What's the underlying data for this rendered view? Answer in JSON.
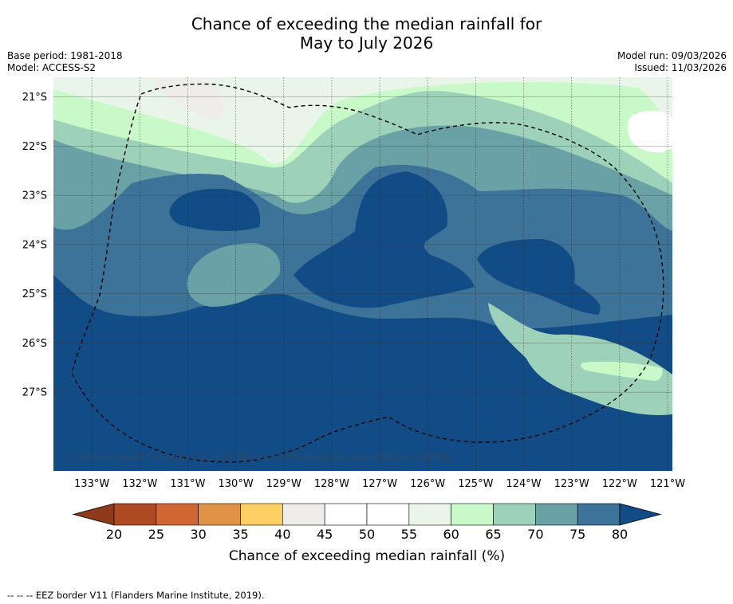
{
  "title": {
    "line1": "Chance of exceeding the median rainfall for",
    "line2": "May to July 2026"
  },
  "meta": {
    "base_period": "Base period: 1981-2018",
    "model": "Model: ACCESS-S2",
    "model_run": "Model run: 09/03/2026",
    "issued": "Issued: 11/03/2026"
  },
  "map": {
    "copyright": "© Commonwealth of Australia 2026, Bureau of Meteorology, supported by COSPPac",
    "lat_labels": [
      "21°S",
      "22°S",
      "23°S",
      "24°S",
      "25°S",
      "26°S",
      "27°S"
    ],
    "lon_labels": [
      "133°W",
      "132°W",
      "131°W",
      "130°W",
      "129°W",
      "128°W",
      "127°W",
      "126°W",
      "125°W",
      "124°W",
      "123°W",
      "122°W",
      "121°W"
    ],
    "extent": {
      "lon_min": -133.8,
      "lon_max": -120.9,
      "lat_min": -28.6,
      "lat_max": -20.6
    },
    "field_regions": [
      {
        "name": "north-pale-zone",
        "level": 55,
        "color": "#eaf5ea"
      },
      {
        "name": "north-light-green-band",
        "level": 60,
        "color": "#c9f8c9"
      },
      {
        "name": "north-mid-green-band",
        "level": 65,
        "color": "#9dd1b9"
      },
      {
        "name": "north-teal-band",
        "level": 70,
        "color": "#6aa1a6"
      },
      {
        "name": "central-blue-zone",
        "level": 75,
        "color": "#3d7398"
      },
      {
        "name": "southern-dark-blue-zone",
        "level": 80,
        "color": "#124c86"
      },
      {
        "name": "northwest-dark-blue-core",
        "level": 80,
        "color": "#124c86"
      },
      {
        "name": "central-dark-blue-core",
        "level": 80,
        "color": "#124c86"
      },
      {
        "name": "east-dark-blue-core",
        "level": 80,
        "color": "#124c86"
      },
      {
        "name": "central-green-patch",
        "level": 70,
        "color": "#6aa1a6"
      },
      {
        "name": "southeast-green-patch",
        "level": 65,
        "color": "#9dd1b9"
      },
      {
        "name": "southeast-light-patch",
        "level": 60,
        "color": "#c9f8c9"
      },
      {
        "name": "north-grey-patch",
        "level": 40,
        "color": "#efedea"
      },
      {
        "name": "northeast-white-patch",
        "level": 50,
        "color": "#ffffff"
      }
    ]
  },
  "colorbar": {
    "ticks": [
      "20",
      "25",
      "30",
      "35",
      "40",
      "45",
      "50",
      "55",
      "60",
      "65",
      "70",
      "75",
      "80"
    ],
    "bins": [
      {
        "level": 20,
        "color": "#ad4a23"
      },
      {
        "level": 25,
        "color": "#cf6633"
      },
      {
        "level": 30,
        "color": "#e09347"
      },
      {
        "level": 35,
        "color": "#fecf65"
      },
      {
        "level": 40,
        "color": "#efedea"
      },
      {
        "level": 45,
        "color": "#ffffff"
      },
      {
        "level": 50,
        "color": "#ffffff"
      },
      {
        "level": 55,
        "color": "#eaf5ea"
      },
      {
        "level": 60,
        "color": "#c9f8c9"
      },
      {
        "level": 65,
        "color": "#9dd1b9"
      },
      {
        "level": 70,
        "color": "#6aa1a6"
      },
      {
        "level": 75,
        "color": "#3d7398"
      }
    ],
    "under_color": "#8f3a1b",
    "over_color": "#124c86",
    "label": "Chance of exceeding median rainfall (%)"
  },
  "legend": {
    "eez_text": "--  --  -- EEZ border V11 (Flanders Marine Institute, 2019)."
  }
}
